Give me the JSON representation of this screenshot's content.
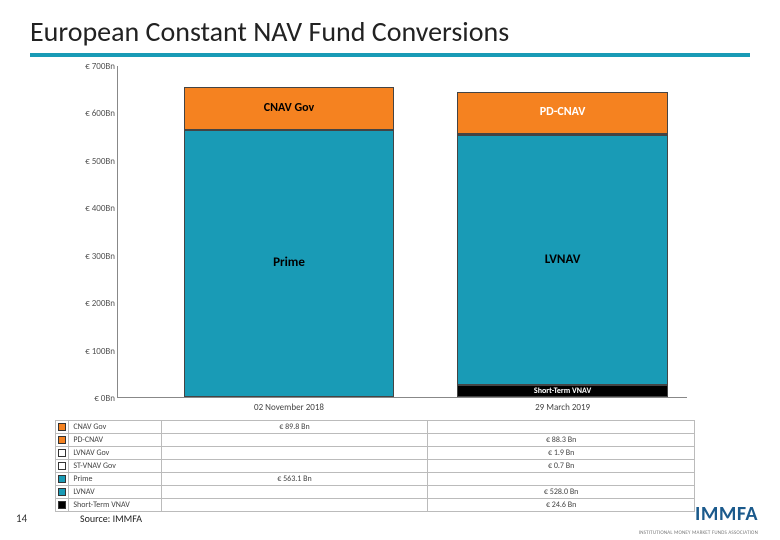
{
  "title": "European Constant NAV Fund Conversions",
  "title_rule_color": "#199bb6",
  "page_number": "14",
  "source": "Source: IMMFA",
  "logo": "IMMFA",
  "logo_sub": "INSTITUTIONAL MONEY MARKET FUNDS ASSOCIATION",
  "chart": {
    "type": "stacked-bar",
    "y_axis": {
      "min": 0,
      "max": 700,
      "step": 100,
      "tick_prefix": "€ ",
      "tick_suffix": "Bn",
      "ticks": [
        "€ 0Bn",
        "€ 100Bn",
        "€ 200Bn",
        "€ 300Bn",
        "€ 400Bn",
        "€ 500Bn",
        "€ 600Bn",
        "€ 700Bn"
      ]
    },
    "x_categories": [
      "02 November 2018",
      "29 March 2019"
    ],
    "bar_width_ratio": 0.37,
    "plot": {
      "border_color": "#888"
    },
    "series_colors": {
      "CNAV Gov": "#f58220",
      "PD-CNAV": "#f58220",
      "LVNAV Gov": "#ffffff",
      "ST-VNAV Gov": "#ffffff",
      "Prime": "#199bb6",
      "LVNAV": "#199bb6",
      "Short-Term VNAV": "#000000"
    },
    "series_text_colors": {
      "CNAV Gov": "#000000",
      "PD-CNAV": "#ffffff",
      "Prime": "#000000",
      "LVNAV": "#000000",
      "Short-Term VNAV": "#ffffff"
    },
    "label_fontsize": {
      "CNAV Gov": 12,
      "PD-CNAV": 12,
      "Prime": 13,
      "LVNAV": 13,
      "Short-Term VNAV": 8
    },
    "bars": [
      {
        "category": "02 November 2018",
        "segments": [
          {
            "name": "Prime",
            "value": 563.1
          },
          {
            "name": "CNAV Gov",
            "value": 89.8
          }
        ]
      },
      {
        "category": "29 March 2019",
        "segments": [
          {
            "name": "Short-Term VNAV",
            "value": 24.6
          },
          {
            "name": "LVNAV",
            "value": 528.0
          },
          {
            "name": "ST-VNAV Gov",
            "value": 0.7,
            "hide_label": true
          },
          {
            "name": "LVNAV Gov",
            "value": 1.9,
            "hide_label": true
          },
          {
            "name": "PD-CNAV",
            "value": 88.3
          }
        ]
      }
    ]
  },
  "legend": {
    "rows": [
      {
        "name": "CNAV Gov",
        "color": "#f58220",
        "values": [
          "€ 89.8 Bn",
          ""
        ]
      },
      {
        "name": "PD-CNAV",
        "color": "#f58220",
        "values": [
          "",
          "€ 88.3 Bn"
        ]
      },
      {
        "name": "LVNAV Gov",
        "color": "#ffffff",
        "values": [
          "",
          "€ 1.9 Bn"
        ]
      },
      {
        "name": "ST-VNAV Gov",
        "color": "#ffffff",
        "values": [
          "",
          "€ 0.7 Bn"
        ]
      },
      {
        "name": "Prime",
        "color": "#199bb6",
        "values": [
          "€ 563.1 Bn",
          ""
        ]
      },
      {
        "name": "LVNAV",
        "color": "#199bb6",
        "values": [
          "",
          "€ 528.0 Bn"
        ]
      },
      {
        "name": "Short-Term VNAV",
        "color": "#000000",
        "values": [
          "",
          "€ 24.6 Bn"
        ]
      }
    ]
  }
}
